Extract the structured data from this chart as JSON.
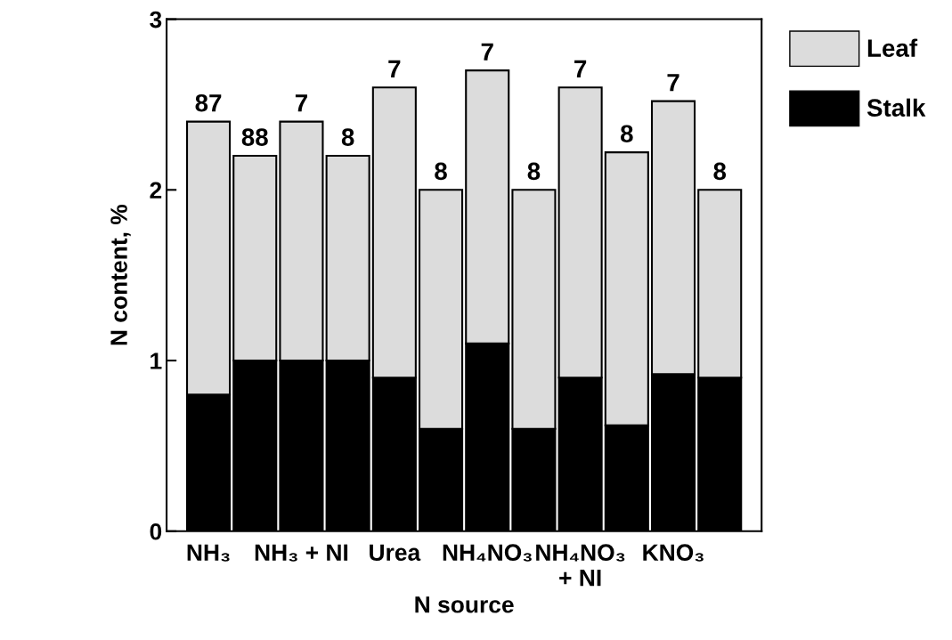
{
  "chart_data": {
    "type": "bar",
    "stacked": true,
    "xlabel": "N source",
    "ylabel": "N content, %",
    "categories": [
      "NH₃",
      null,
      "NH₃ + NI",
      null,
      "Urea",
      null,
      "NH₄NO₃",
      null,
      "NH₄NO₃\n+ NI",
      null,
      "KNO₃",
      null
    ],
    "series": [
      {
        "name": "Stalk",
        "color": "#000000",
        "values": [
          0.8,
          1.0,
          1.0,
          1.0,
          0.9,
          0.6,
          1.1,
          0.6,
          0.9,
          0.62,
          0.92,
          0.9
        ]
      },
      {
        "name": "Leaf",
        "color": "#dcdcdc",
        "values": [
          1.6,
          1.2,
          1.4,
          1.2,
          1.7,
          1.4,
          1.6,
          1.4,
          1.7,
          1.6,
          1.6,
          1.1
        ]
      }
    ],
    "annotations": [
      "87",
      "88",
      "7",
      "8",
      "7",
      "8",
      "7",
      "8",
      "7",
      "8",
      "7",
      "8"
    ],
    "ylim": [
      0,
      3
    ],
    "yticks": [
      0,
      1,
      2,
      3
    ],
    "grid": false,
    "legend": "top right"
  }
}
